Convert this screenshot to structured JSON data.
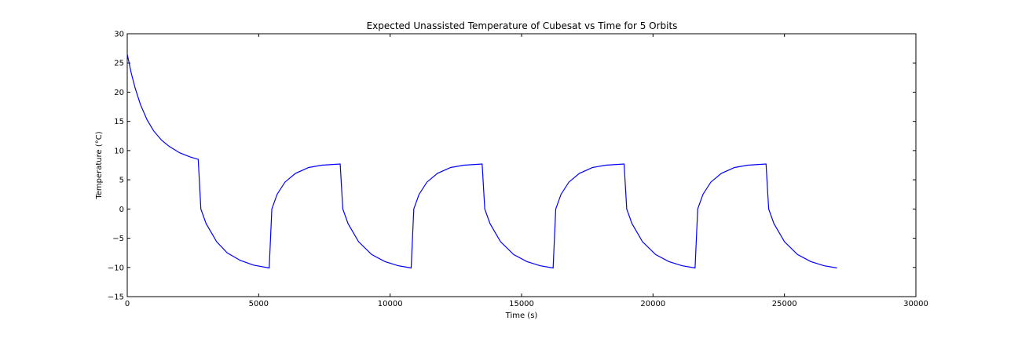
{
  "chart_data": {
    "type": "line",
    "title": "Expected Unassisted Temperature of Cubesat vs Time for 5 Orbits",
    "xlabel": "Time (s)",
    "ylabel": "Temperature (°C)",
    "xlim": [
      0,
      30000
    ],
    "ylim": [
      -15,
      30
    ],
    "xticks": [
      0,
      5000,
      10000,
      15000,
      20000,
      25000,
      30000
    ],
    "yticks": [
      -15,
      -10,
      -5,
      0,
      5,
      10,
      15,
      20,
      25,
      30
    ],
    "grid": false,
    "series": [
      {
        "color": "#0000ff",
        "x": [
          0,
          150,
          300,
          500,
          750,
          1000,
          1300,
          1600,
          2000,
          2400,
          2700,
          2800,
          3000,
          3400,
          3800,
          4300,
          4800,
          5400,
          5500,
          5700,
          6000,
          6400,
          6900,
          7400,
          8100,
          8200,
          8400,
          8800,
          9300,
          9800,
          10300,
          10800,
          10900,
          11100,
          11400,
          11800,
          12300,
          12800,
          13500,
          13600,
          13800,
          14200,
          14700,
          15200,
          15700,
          16200,
          16300,
          16500,
          16800,
          17200,
          17700,
          18200,
          18900,
          19000,
          19200,
          19600,
          20100,
          20600,
          21100,
          21600,
          21700,
          21900,
          22200,
          22600,
          23100,
          23600,
          24300,
          24400,
          24600,
          25000,
          25500,
          26000,
          26500,
          27000
        ],
        "y": [
          26.5,
          23.3,
          20.7,
          17.9,
          15.3,
          13.4,
          11.8,
          10.7,
          9.6,
          8.9,
          8.5,
          0,
          -2.5,
          -5.6,
          -7.5,
          -8.8,
          -9.6,
          -10.1,
          0,
          2.5,
          4.6,
          6.1,
          7.1,
          7.5,
          7.7,
          0,
          -2.5,
          -5.6,
          -7.8,
          -9.0,
          -9.7,
          -10.1,
          0,
          2.5,
          4.6,
          6.1,
          7.1,
          7.5,
          7.7,
          0,
          -2.5,
          -5.6,
          -7.8,
          -9.0,
          -9.7,
          -10.1,
          0,
          2.5,
          4.6,
          6.1,
          7.1,
          7.5,
          7.7,
          0,
          -2.5,
          -5.6,
          -7.8,
          -9.0,
          -9.7,
          -10.1,
          0,
          2.5,
          4.6,
          6.1,
          7.1,
          7.5,
          7.7,
          0,
          -2.5,
          -5.6,
          -7.8,
          -9.0,
          -9.7,
          -10.1
        ]
      }
    ]
  }
}
